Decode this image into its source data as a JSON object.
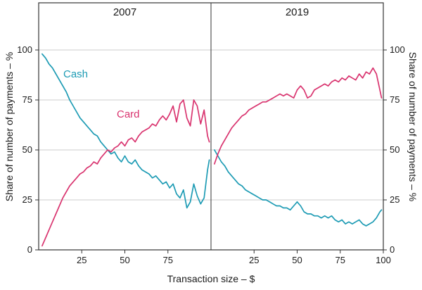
{
  "chart_data": {
    "type": "line",
    "title": "",
    "xlabel": "Transaction size – $",
    "ylabel_left": "Share of number of payments – %",
    "ylabel_right": "Share of number of payments – %",
    "ylim": [
      0,
      100
    ],
    "yticks": [
      0,
      25,
      50,
      75,
      100
    ],
    "grid": true,
    "legend_position": "inline-labels",
    "colors": {
      "cash": "#1d9bb4",
      "card": "#d9346f",
      "frame": "#333333",
      "gridline": "#bdbdbd",
      "text": "#1a1a1a"
    },
    "panels": [
      {
        "title": "2007",
        "xlim": [
          0,
          100
        ],
        "xticks": [
          25,
          50,
          75
        ],
        "series": [
          {
            "name": "Cash",
            "color_key": "cash",
            "points": [
              [
                2,
                98
              ],
              [
                4,
                96
              ],
              [
                6,
                93
              ],
              [
                8,
                91
              ],
              [
                10,
                88
              ],
              [
                12,
                85
              ],
              [
                14,
                82
              ],
              [
                16,
                79
              ],
              [
                18,
                75
              ],
              [
                20,
                72
              ],
              [
                22,
                69
              ],
              [
                24,
                66
              ],
              [
                26,
                64
              ],
              [
                28,
                62
              ],
              [
                30,
                60
              ],
              [
                32,
                58
              ],
              [
                34,
                57
              ],
              [
                36,
                54
              ],
              [
                38,
                52
              ],
              [
                40,
                50
              ],
              [
                42,
                48
              ],
              [
                44,
                49
              ],
              [
                46,
                46
              ],
              [
                48,
                44
              ],
              [
                50,
                47
              ],
              [
                52,
                44
              ],
              [
                54,
                43
              ],
              [
                56,
                45
              ],
              [
                58,
                42
              ],
              [
                60,
                40
              ],
              [
                62,
                39
              ],
              [
                64,
                38
              ],
              [
                66,
                36
              ],
              [
                68,
                37
              ],
              [
                70,
                35
              ],
              [
                72,
                33
              ],
              [
                74,
                34
              ],
              [
                76,
                31
              ],
              [
                78,
                33
              ],
              [
                80,
                28
              ],
              [
                82,
                26
              ],
              [
                84,
                30
              ],
              [
                86,
                21
              ],
              [
                88,
                24
              ],
              [
                90,
                33
              ],
              [
                92,
                27
              ],
              [
                94,
                23
              ],
              [
                96,
                26
              ],
              [
                98,
                40
              ],
              [
                99,
                45
              ]
            ]
          },
          {
            "name": "Card",
            "color_key": "card",
            "points": [
              [
                2,
                2
              ],
              [
                4,
                6
              ],
              [
                6,
                10
              ],
              [
                8,
                14
              ],
              [
                10,
                18
              ],
              [
                12,
                22
              ],
              [
                14,
                26
              ],
              [
                16,
                29
              ],
              [
                18,
                32
              ],
              [
                20,
                34
              ],
              [
                22,
                36
              ],
              [
                24,
                38
              ],
              [
                26,
                39
              ],
              [
                28,
                41
              ],
              [
                30,
                42
              ],
              [
                32,
                44
              ],
              [
                34,
                43
              ],
              [
                36,
                46
              ],
              [
                38,
                48
              ],
              [
                40,
                50
              ],
              [
                42,
                49
              ],
              [
                44,
                51
              ],
              [
                46,
                52
              ],
              [
                48,
                54
              ],
              [
                50,
                52
              ],
              [
                52,
                55
              ],
              [
                54,
                56
              ],
              [
                56,
                54
              ],
              [
                58,
                57
              ],
              [
                60,
                59
              ],
              [
                62,
                60
              ],
              [
                64,
                61
              ],
              [
                66,
                63
              ],
              [
                68,
                62
              ],
              [
                70,
                65
              ],
              [
                72,
                67
              ],
              [
                74,
                65
              ],
              [
                76,
                68
              ],
              [
                78,
                72
              ],
              [
                80,
                64
              ],
              [
                82,
                73
              ],
              [
                84,
                75
              ],
              [
                86,
                66
              ],
              [
                88,
                62
              ],
              [
                90,
                75
              ],
              [
                92,
                72
              ],
              [
                94,
                63
              ],
              [
                96,
                70
              ],
              [
                98,
                57
              ],
              [
                99,
                54
              ]
            ]
          }
        ]
      },
      {
        "title": "2019",
        "xlim": [
          0,
          100
        ],
        "xticks": [
          25,
          50,
          75,
          100
        ],
        "series": [
          {
            "name": "Cash",
            "color_key": "cash",
            "points": [
              [
                2,
                50
              ],
              [
                4,
                47
              ],
              [
                6,
                44
              ],
              [
                8,
                42
              ],
              [
                10,
                39
              ],
              [
                12,
                37
              ],
              [
                14,
                35
              ],
              [
                16,
                33
              ],
              [
                18,
                32
              ],
              [
                20,
                30
              ],
              [
                22,
                29
              ],
              [
                24,
                28
              ],
              [
                26,
                27
              ],
              [
                28,
                26
              ],
              [
                30,
                25
              ],
              [
                32,
                25
              ],
              [
                34,
                24
              ],
              [
                36,
                23
              ],
              [
                38,
                22
              ],
              [
                40,
                22
              ],
              [
                42,
                21
              ],
              [
                44,
                21
              ],
              [
                46,
                20
              ],
              [
                48,
                22
              ],
              [
                50,
                24
              ],
              [
                52,
                22
              ],
              [
                54,
                19
              ],
              [
                56,
                18
              ],
              [
                58,
                18
              ],
              [
                60,
                17
              ],
              [
                62,
                17
              ],
              [
                64,
                16
              ],
              [
                66,
                17
              ],
              [
                68,
                16
              ],
              [
                70,
                17
              ],
              [
                72,
                15
              ],
              [
                74,
                14
              ],
              [
                76,
                15
              ],
              [
                78,
                13
              ],
              [
                80,
                14
              ],
              [
                82,
                13
              ],
              [
                84,
                14
              ],
              [
                86,
                15
              ],
              [
                88,
                13
              ],
              [
                90,
                12
              ],
              [
                92,
                13
              ],
              [
                94,
                14
              ],
              [
                96,
                16
              ],
              [
                98,
                19
              ],
              [
                99,
                20
              ]
            ]
          },
          {
            "name": "Card",
            "color_key": "card",
            "points": [
              [
                2,
                43
              ],
              [
                4,
                48
              ],
              [
                6,
                52
              ],
              [
                8,
                55
              ],
              [
                10,
                58
              ],
              [
                12,
                61
              ],
              [
                14,
                63
              ],
              [
                16,
                65
              ],
              [
                18,
                67
              ],
              [
                20,
                68
              ],
              [
                22,
                70
              ],
              [
                24,
                71
              ],
              [
                26,
                72
              ],
              [
                28,
                73
              ],
              [
                30,
                74
              ],
              [
                32,
                74
              ],
              [
                34,
                75
              ],
              [
                36,
                76
              ],
              [
                38,
                77
              ],
              [
                40,
                78
              ],
              [
                42,
                77
              ],
              [
                44,
                78
              ],
              [
                46,
                77
              ],
              [
                48,
                76
              ],
              [
                50,
                80
              ],
              [
                52,
                82
              ],
              [
                54,
                80
              ],
              [
                56,
                76
              ],
              [
                58,
                77
              ],
              [
                60,
                80
              ],
              [
                62,
                81
              ],
              [
                64,
                82
              ],
              [
                66,
                83
              ],
              [
                68,
                82
              ],
              [
                70,
                84
              ],
              [
                72,
                85
              ],
              [
                74,
                84
              ],
              [
                76,
                86
              ],
              [
                78,
                85
              ],
              [
                80,
                87
              ],
              [
                82,
                86
              ],
              [
                84,
                85
              ],
              [
                86,
                88
              ],
              [
                88,
                86
              ],
              [
                90,
                89
              ],
              [
                92,
                88
              ],
              [
                94,
                91
              ],
              [
                96,
                88
              ],
              [
                98,
                80
              ],
              [
                99,
                76
              ]
            ]
          }
        ]
      }
    ]
  }
}
